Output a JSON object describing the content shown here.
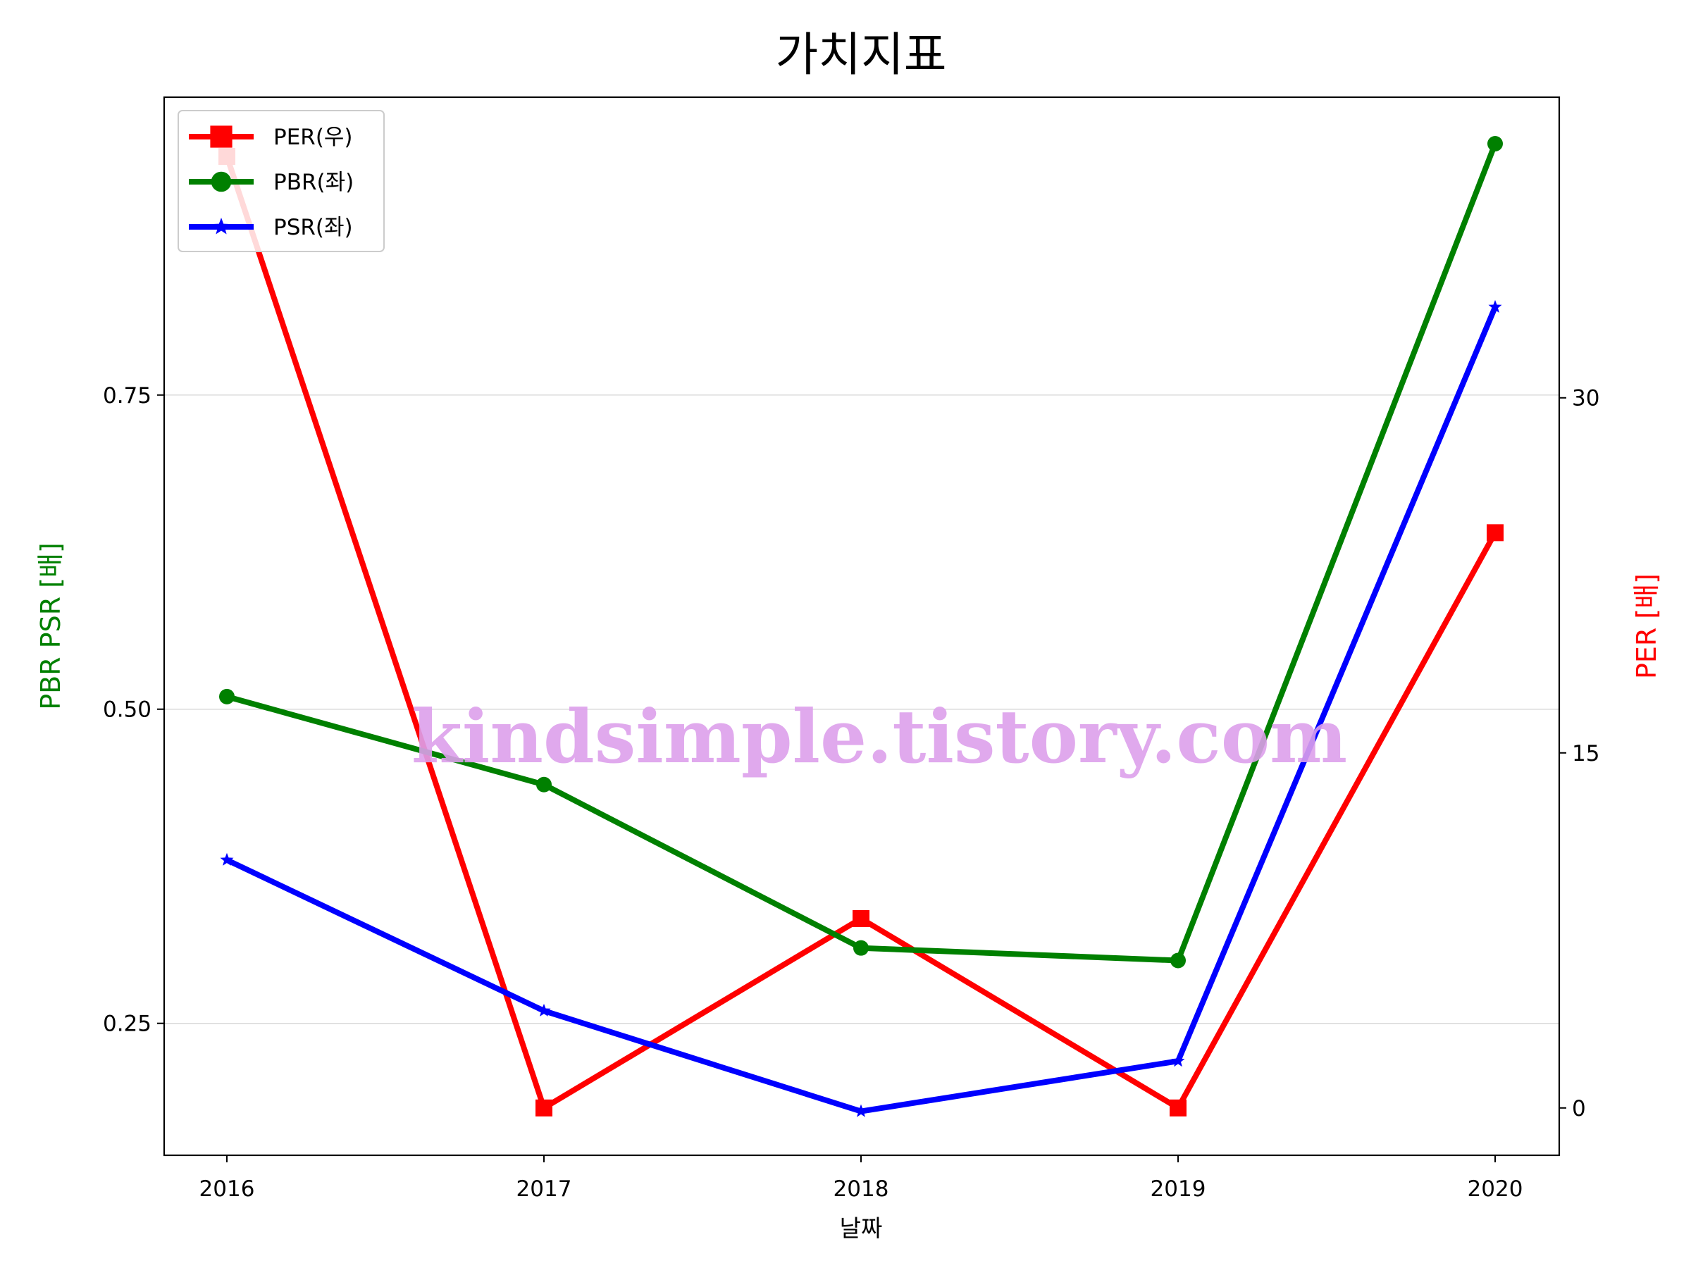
{
  "chart_data": {
    "type": "line",
    "title": "가치지표",
    "xlabel": "날짜",
    "ylabel_left": "PBR PSR [배]",
    "ylabel_right": "PER [배]",
    "categories": [
      "2016",
      "2017",
      "2018",
      "2019",
      "2020"
    ],
    "left_axis": {
      "ylim": [
        0.145,
        0.987
      ],
      "ticks": [
        "0.25",
        "0.50",
        "0.75"
      ],
      "tick_values": [
        0.25,
        0.5,
        0.75
      ]
    },
    "right_axis": {
      "ylim": [
        -2.0,
        42.7
      ],
      "ticks": [
        "0",
        "15",
        "30"
      ],
      "tick_values": [
        0,
        15,
        30
      ]
    },
    "grid": "horizontal (left axis)",
    "legend_position": "top-left",
    "series": [
      {
        "name": "PER(우)",
        "axis": "right",
        "color": "#ff0000",
        "marker": "square",
        "values": [
          40.2,
          0.0,
          8.0,
          0.0,
          24.3
        ]
      },
      {
        "name": "PBR(좌)",
        "axis": "left",
        "color": "#008000",
        "marker": "circle",
        "values": [
          0.51,
          0.44,
          0.31,
          0.3,
          0.95
        ]
      },
      {
        "name": "PSR(좌)",
        "axis": "left",
        "color": "#0000ff",
        "marker": "star",
        "values": [
          0.38,
          0.26,
          0.18,
          0.22,
          0.82
        ]
      }
    ],
    "watermark": "kindsimple.tistory.com",
    "colors": {
      "left_axis_label": "#008000",
      "right_axis_label": "#ff0000",
      "grid": "#d9d9d9"
    }
  }
}
